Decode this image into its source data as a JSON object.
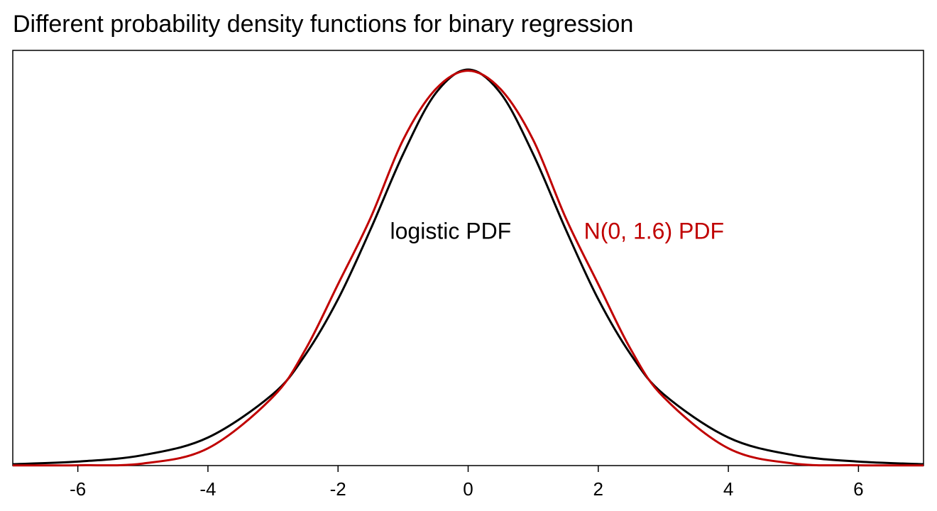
{
  "chart_data": {
    "type": "line",
    "title": "Different probability density functions for binary regression",
    "xlabel": "",
    "ylabel": "",
    "xlim": [
      -7,
      7
    ],
    "ylim": [
      0,
      0.25
    ],
    "grid": false,
    "x_ticks": [
      -6,
      -4,
      -2,
      0,
      2,
      4,
      6
    ],
    "x_tick_labels": [
      "-6",
      "-4",
      "-2",
      "0",
      "2",
      "4",
      "6"
    ],
    "series": [
      {
        "color": "#000000",
        "x": [
          -7,
          -6,
          -5,
          -4,
          -3,
          -2.5,
          -2,
          -1.5,
          -1,
          -0.5,
          0,
          0.5,
          1,
          1.5,
          2,
          2.5,
          3,
          4,
          5,
          6,
          7
        ],
        "y": [
          0.0009,
          0.0025,
          0.0066,
          0.0177,
          0.0452,
          0.0701,
          0.105,
          0.1491,
          0.1966,
          0.235,
          0.25,
          0.235,
          0.1966,
          0.1491,
          0.105,
          0.0701,
          0.0452,
          0.0177,
          0.0066,
          0.0025,
          0.0009
        ]
      },
      {
        "color": "#c00000",
        "x": [
          -7,
          -6,
          -5,
          -4,
          -3,
          -2.5,
          -2,
          -1.5,
          -1,
          -0.5,
          0,
          0.5,
          1,
          1.5,
          2,
          2.5,
          3,
          4,
          5,
          6,
          7
        ],
        "y": [
          0.0001,
          0.0002,
          0.0013,
          0.0109,
          0.0434,
          0.0734,
          0.1145,
          0.1563,
          0.2056,
          0.2376,
          0.2493,
          0.2376,
          0.2056,
          0.1563,
          0.1145,
          0.0734,
          0.0434,
          0.0109,
          0.0013,
          0.0002,
          0.0001
        ]
      }
    ],
    "annotations": [
      {
        "text": "logistic PDF",
        "x": -1.2,
        "y": 0.148,
        "color": "#000000"
      },
      {
        "text": "N(0, 1.6) PDF",
        "x": 1.78,
        "y": 0.148,
        "color": "#c00000"
      }
    ]
  }
}
